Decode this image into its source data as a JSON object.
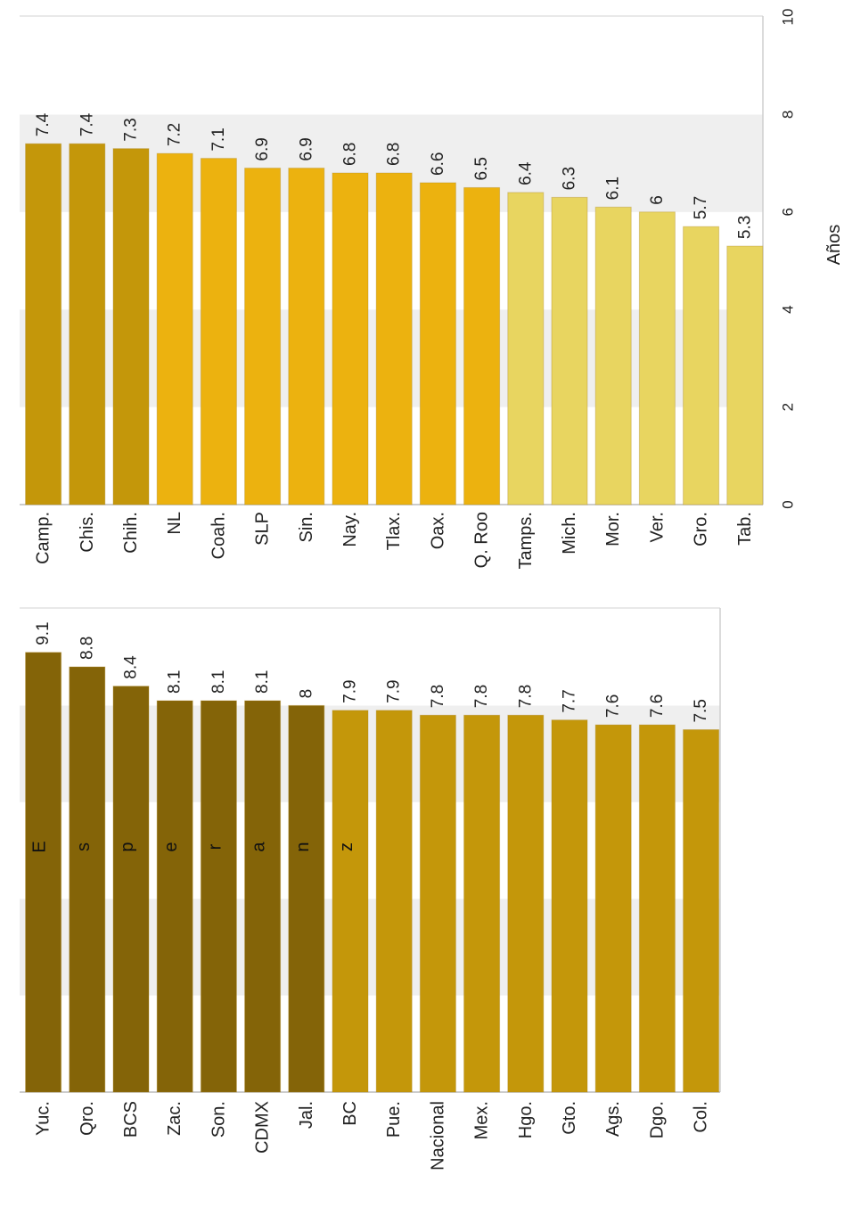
{
  "chart_data": [
    {
      "type": "bar",
      "orientation": "horizontal",
      "panel": "right",
      "xlabel": "Años",
      "xlim": [
        0,
        10
      ],
      "ticks": [
        "0",
        "2",
        "4",
        "6",
        "8",
        "10"
      ],
      "categories": [
        "Camp.",
        "Chis.",
        "Chih.",
        "NL",
        "Coah.",
        "SLP",
        "Sin.",
        "Nay.",
        "Tlax.",
        "Oax.",
        "Q. Roo",
        "Tamps.",
        "Mich.",
        "Mor.",
        "Ver.",
        "Gro.",
        "Tab."
      ],
      "values": [
        7.4,
        7.4,
        7.3,
        7.2,
        7.1,
        6.9,
        6.9,
        6.8,
        6.8,
        6.6,
        6.5,
        6.4,
        6.3,
        6.1,
        6,
        5.7,
        5.3
      ],
      "labels": [
        "7.4",
        "7.4",
        "7.3",
        "7.2",
        "7.1",
        "6.9",
        "6.9",
        "6.8",
        "6.8",
        "6.6",
        "6.5",
        "6.4",
        "6.3",
        "6.1",
        "6",
        "5.7",
        "5.3"
      ],
      "bar_colors": [
        "#c4970a",
        "#c4970a",
        "#c4970a",
        "#ecb20f",
        "#ecb20f",
        "#ecb20f",
        "#ecb20f",
        "#ecb20f",
        "#ecb20f",
        "#ecb20f",
        "#ecb20f",
        "#e8d560",
        "#e8d560",
        "#e8d560",
        "#e8d560",
        "#e8d560",
        "#e8d560"
      ],
      "grid": true
    },
    {
      "type": "bar",
      "orientation": "horizontal",
      "panel": "left",
      "xlabel": "",
      "xlim": [
        0,
        10
      ],
      "categories": [
        "Yuc.",
        "Qro.",
        "BCS",
        "Zac.",
        "Son.",
        "CDMX",
        "Jal.",
        "BC",
        "Pue.",
        "Nacional",
        "Mex.",
        "Hgo.",
        "Gto.",
        "Ags.",
        "Dgo.",
        "Col."
      ],
      "values": [
        9.1,
        8.8,
        8.4,
        8.1,
        8.1,
        8.1,
        8,
        7.9,
        7.9,
        7.8,
        7.8,
        7.8,
        7.7,
        7.6,
        7.6,
        7.5
      ],
      "labels": [
        "9.1",
        "8.8",
        "8.4",
        "8.1",
        "8.1",
        "8.1",
        "8",
        "7.9",
        "7.9",
        "7.8",
        "7.8",
        "7.8",
        "7.7",
        "7.6",
        "7.6",
        "7.5"
      ],
      "bar_colors": [
        "#846408",
        "#846408",
        "#846408",
        "#846408",
        "#846408",
        "#846408",
        "#846408",
        "#c4970a",
        "#c4970a",
        "#c4970a",
        "#c4970a",
        "#c4970a",
        "#c4970a",
        "#c4970a",
        "#c4970a",
        "#c4970a"
      ],
      "annotation_letters": [
        "E",
        "s",
        "p",
        "e",
        "r",
        "a",
        "n",
        "z"
      ],
      "grid": true
    }
  ]
}
